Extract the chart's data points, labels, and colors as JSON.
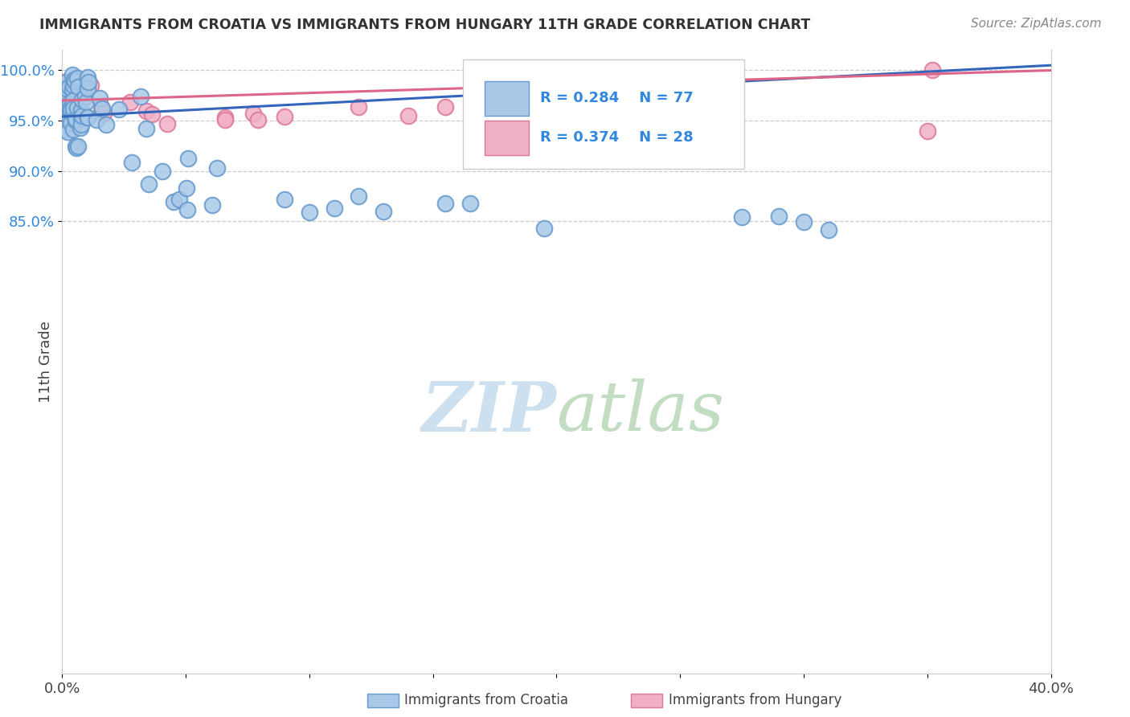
{
  "title": "IMMIGRANTS FROM CROATIA VS IMMIGRANTS FROM HUNGARY 11TH GRADE CORRELATION CHART",
  "source_text": "Source: ZipAtlas.com",
  "ylabel": "11th Grade",
  "xlim": [
    0.0,
    0.4
  ],
  "ylim": [
    0.4,
    1.02
  ],
  "croatia_color": "#a8c8e8",
  "croatia_edge": "#6699cc",
  "hungary_color": "#f0b0c8",
  "hungary_edge": "#dd7799",
  "trend_croatia_color": "#3366bb",
  "trend_hungary_color": "#dd6688",
  "R_croatia": 0.284,
  "N_croatia": 77,
  "R_hungary": 0.374,
  "N_hungary": 28,
  "legend_R_color": "#3388dd",
  "watermark_color": "#cce0f0",
  "ytick_vals": [
    0.85,
    0.9,
    0.95,
    1.0
  ],
  "ytick_labels": [
    "85.0%",
    "90.0%",
    "95.0%",
    "100.0%"
  ],
  "croatia_trend_x0": 0.0,
  "croatia_trend_y0": 0.954,
  "croatia_trend_x1": 0.4,
  "croatia_trend_y1": 1.005,
  "hungary_trend_x0": 0.0,
  "hungary_trend_y0": 0.97,
  "hungary_trend_x1": 0.4,
  "hungary_trend_y1": 1.0
}
